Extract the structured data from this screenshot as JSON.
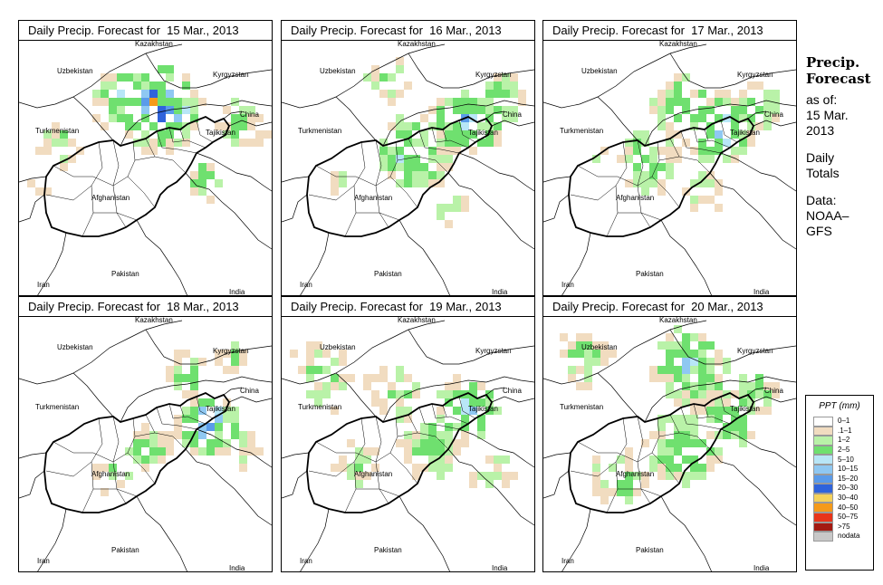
{
  "panels": [
    {
      "title": "Daily Precip. Forecast for  15 Mar., 2013",
      "day": 0
    },
    {
      "title": "Daily Precip. Forecast for  16 Mar., 2013",
      "day": 1
    },
    {
      "title": "Daily Precip. Forecast for  17 Mar., 2013",
      "day": 2
    },
    {
      "title": "Daily Precip. Forecast for  18 Mar., 2013",
      "day": 3
    },
    {
      "title": "Daily Precip. Forecast for  19 Mar., 2013",
      "day": 4
    },
    {
      "title": "Daily Precip. Forecast for  20 Mar., 2013",
      "day": 5
    }
  ],
  "places": {
    "kazakhstan": "Kazakhstan",
    "uzbekistan": "Uzbekistan",
    "kyrgyzstan": "Kyrgyzstan",
    "turkmenistan": "Turkmenistan",
    "china": "China",
    "tajikistan": "Tajikistan",
    "afghanistan": "Afghanistan",
    "pakistan": "Pakistan",
    "iran": "Iran",
    "india": "India"
  },
  "side": {
    "heading_line1": "Precip.",
    "heading_line2": "Forecast",
    "asof_line1": "as of:",
    "asof_line2": "15 Mar.",
    "asof_line3": "2013",
    "daily_line1": "Daily",
    "daily_line2": "Totals",
    "data_line1": "Data:",
    "data_line2": "NOAA–",
    "data_line3": "GFS"
  },
  "legend": {
    "title": "PPT (mm)",
    "classes": [
      {
        "label": "0–1",
        "color": "#ffffff"
      },
      {
        "label": ".1–1",
        "color": "#f1dcc0"
      },
      {
        "label": "1–2",
        "color": "#b9f2a8"
      },
      {
        "label": "2–5",
        "color": "#6fe06f"
      },
      {
        "label": "5–10",
        "color": "#b8e6f7"
      },
      {
        "label": "10–15",
        "color": "#8fc8f2"
      },
      {
        "label": "15–20",
        "color": "#5a9bea"
      },
      {
        "label": "20–30",
        "color": "#2f63db"
      },
      {
        "label": "30–40",
        "color": "#f5d25a"
      },
      {
        "label": "40–50",
        "color": "#f59a1a"
      },
      {
        "label": "50–75",
        "color": "#e8351a"
      },
      {
        "label": ">75",
        "color": "#a31a12"
      },
      {
        "label": "nodata",
        "color": "#c8c8c8"
      }
    ]
  }
}
